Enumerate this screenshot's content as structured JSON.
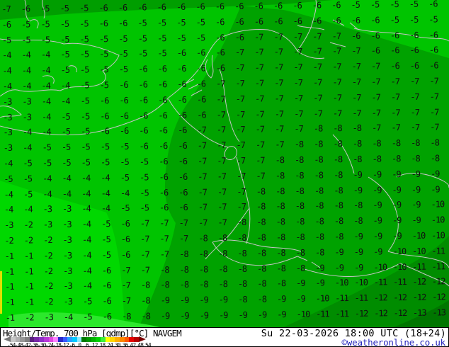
{
  "footer": {
    "title": "Height/Temp. 700 hPa [gdmp][°C] NAVGEM",
    "datetime": "Su 22-03-2026 18:00 UTC (18+24)",
    "copyright": "©weatheronline.co.uk",
    "scale_labels": [
      "-54",
      "-48",
      "-42",
      "-36",
      "-30",
      "-24",
      "-18",
      "-12",
      "-6",
      "0",
      "6",
      "12",
      "18",
      "24",
      "30",
      "36",
      "42",
      "48",
      "54"
    ],
    "scale_colors": [
      "#c8c8c8",
      "#b0b0b0",
      "#989898",
      "#808080",
      "#5a2080",
      "#7828a8",
      "#9030c8",
      "#b838d8",
      "#e048e0",
      "#ff80ff",
      "#2828c8",
      "#3858ff",
      "#28a0ff",
      "#00c8ff",
      "#90e8ff",
      "#007800",
      "#009600",
      "#00b400",
      "#00d200",
      "#3cf03c",
      "#ffff00",
      "#ffd800",
      "#ffb000",
      "#ff8800",
      "#ff5800",
      "#e80000",
      "#b40000"
    ]
  },
  "map": {
    "region_colors": {
      "base_green": "#00c400",
      "top_strip": "#009e00",
      "east_band": "#00a200",
      "sw_bright": "#00d800",
      "sw_lightest": "#2ce82c",
      "se_dark": "#008c00",
      "se_darkest": "#007600",
      "west_edge_yellow": "#e0e000",
      "border_gray": "#c4c4c4"
    },
    "temps": [
      [
        -7,
        -6,
        -5,
        -5,
        -5,
        -6,
        -6,
        -6,
        -6,
        -6,
        -6,
        -6,
        -6,
        -6,
        -6,
        -6,
        -6,
        -6,
        -5,
        -5,
        -5,
        -5,
        -6
      ],
      [
        -6,
        -5,
        -5,
        -5,
        -5,
        -6,
        -6,
        -5,
        -5,
        -5,
        -5,
        -6,
        -6,
        -6,
        -6,
        -6,
        -6,
        -6,
        -6,
        -6,
        -5,
        -5,
        -5
      ],
      [
        -5,
        -5,
        -5,
        -5,
        -5,
        -5,
        -5,
        -5,
        -5,
        -5,
        -5,
        -6,
        -6,
        -7,
        -7,
        -7,
        -7,
        -7,
        -6,
        -6,
        -6,
        -6,
        -6
      ],
      [
        -4,
        -4,
        -4,
        -5,
        -5,
        -5,
        -5,
        -5,
        -5,
        -6,
        -6,
        -6,
        -7,
        -7,
        -7,
        -7,
        -7,
        -7,
        -7,
        -6,
        -6,
        -6,
        -6
      ],
      [
        -4,
        -4,
        -4,
        -5,
        -5,
        -5,
        -5,
        -6,
        -6,
        -6,
        -6,
        -6,
        -7,
        -7,
        -7,
        -7,
        -7,
        -7,
        -7,
        -7,
        -6,
        -6,
        -6
      ],
      [
        -4,
        -4,
        -4,
        -4,
        -5,
        -5,
        -6,
        -6,
        -6,
        -6,
        -6,
        -7,
        -7,
        -7,
        -7,
        -7,
        -7,
        -7,
        -7,
        -7,
        -7,
        -7,
        -7
      ],
      [
        -3,
        -3,
        -4,
        -4,
        -5,
        -6,
        -6,
        -6,
        -6,
        -6,
        -6,
        -7,
        -7,
        -7,
        -7,
        -7,
        -7,
        -7,
        -7,
        -7,
        -7,
        -7,
        -7
      ],
      [
        -3,
        -3,
        -4,
        -5,
        -5,
        -6,
        -6,
        -6,
        -6,
        -6,
        -6,
        -7,
        -7,
        -7,
        -7,
        -7,
        -7,
        -7,
        -7,
        -7,
        -7,
        -7,
        -7
      ],
      [
        -3,
        -4,
        -4,
        -5,
        -5,
        -6,
        -6,
        -6,
        -6,
        -6,
        -7,
        -7,
        -7,
        -7,
        -7,
        -7,
        -8,
        -8,
        -8,
        -7,
        -7,
        -7,
        -7
      ],
      [
        -3,
        -4,
        -5,
        -5,
        -5,
        -5,
        -5,
        -6,
        -6,
        -6,
        -7,
        -7,
        -7,
        -7,
        -7,
        -8,
        -8,
        -8,
        -8,
        -8,
        -8,
        -8,
        -8
      ],
      [
        -4,
        -5,
        -5,
        -5,
        -5,
        -5,
        -5,
        -5,
        -6,
        -6,
        -7,
        -7,
        -7,
        -7,
        -8,
        -8,
        -8,
        -8,
        -8,
        -8,
        -8,
        -8,
        -8
      ],
      [
        -5,
        -5,
        -4,
        -4,
        -4,
        -4,
        -5,
        -5,
        -6,
        -6,
        -7,
        -7,
        -7,
        -7,
        -8,
        -8,
        -8,
        -8,
        -9,
        -9,
        -9,
        -9,
        -9
      ],
      [
        -4,
        -5,
        -4,
        -4,
        -4,
        -4,
        -4,
        -5,
        -6,
        -6,
        -7,
        -7,
        -7,
        -8,
        -8,
        -8,
        -8,
        -8,
        -9,
        -9,
        -9,
        -9,
        -9
      ],
      [
        -4,
        -4,
        -3,
        -3,
        -4,
        -4,
        -5,
        -5,
        -6,
        -6,
        -7,
        -7,
        -7,
        -8,
        -8,
        -8,
        -8,
        -8,
        -8,
        -9,
        -9,
        -9,
        -10
      ],
      [
        -3,
        -2,
        -3,
        -3,
        -4,
        -5,
        -6,
        -7,
        -7,
        -7,
        -7,
        -7,
        -8,
        -8,
        -8,
        -8,
        -8,
        -8,
        -8,
        -9,
        -9,
        -9,
        -10
      ],
      [
        -2,
        -2,
        -2,
        -3,
        -4,
        -5,
        -6,
        -7,
        -7,
        -7,
        -8,
        -8,
        -8,
        -8,
        -8,
        -8,
        -8,
        -8,
        -9,
        -9,
        -9,
        -10,
        -10
      ],
      [
        -1,
        -1,
        -2,
        -3,
        -4,
        -5,
        -6,
        -7,
        -7,
        -8,
        -8,
        -8,
        -8,
        -8,
        -8,
        -8,
        -8,
        -9,
        -9,
        -9,
        -10,
        -10,
        -11
      ],
      [
        -1,
        -1,
        -2,
        -3,
        -4,
        -6,
        -7,
        -7,
        -8,
        -8,
        -8,
        -8,
        -8,
        -8,
        -8,
        -8,
        -9,
        -9,
        -9,
        -10,
        -10,
        -11,
        -11
      ],
      [
        -1,
        -1,
        -2,
        -3,
        -4,
        -6,
        -7,
        -8,
        -8,
        -8,
        -8,
        -8,
        -8,
        -8,
        -8,
        -9,
        -9,
        -10,
        -10,
        -11,
        -11,
        -12,
        -12
      ],
      [
        -1,
        -1,
        -2,
        -3,
        -5,
        -6,
        -7,
        -8,
        -9,
        -9,
        -9,
        -9,
        -8,
        -8,
        -9,
        -9,
        -10,
        -11,
        -11,
        -12,
        -12,
        -12,
        -12
      ],
      [
        -1,
        -2,
        -3,
        -4,
        -5,
        -6,
        -8,
        -8,
        -9,
        -9,
        -9,
        -9,
        -9,
        -9,
        -9,
        -10,
        -11,
        -11,
        -12,
        -12,
        -12,
        -13,
        -13
      ]
    ]
  }
}
